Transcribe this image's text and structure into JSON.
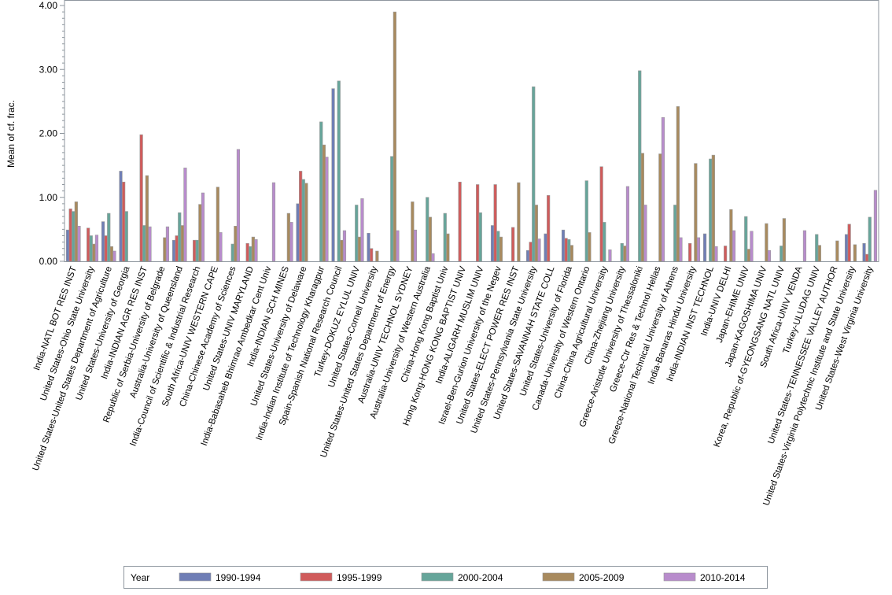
{
  "chart_data": {
    "type": "bar",
    "title": "",
    "xlabel": "",
    "ylabel": "Mean of cf. frac.",
    "ylim": [
      0,
      4
    ],
    "yticks": [
      "0.00",
      "1.00",
      "2.00",
      "3.00",
      "4.00"
    ],
    "legend": {
      "title": "Year",
      "placement": "bottom"
    },
    "categories": [
      "India-NATL BOT RES INST",
      "United States-Ohio State University",
      "United States-United States Department of Agriculture",
      "United States-University of Georgia",
      "India-INDIAN AGR RES INST",
      "Republic of Serbia-University of Belgrade",
      "Australia-University of Queensland",
      "India-Council of Scientific & Industrial Research",
      "South Africa-UNIV WESTERN CAPE",
      "China-Chinese Academy of Sciences",
      "United States-UNIV MARYLAND",
      "India-Babasaheb Bhimrao Ambedkar Cent Univ",
      "India-INDIAN SCH MINES",
      "United States-University of Delaware",
      "India-Indian Institute of Technology Kharagpur",
      "Spain-Spanish National Research Council",
      "Turkey-DOKUZ EYLUL UNIV",
      "United States-Cornell University",
      "United States-United States Department of Energy",
      "Australia-UNIV TECHNOL SYDNEY",
      "Australia-University of Western Australia",
      "China-Hong Kong Baptist Univ",
      "Hong Kong-HONG KONG BAPTIST UNIV",
      "India-ALIGARH MUSLIM UNIV",
      "Israel-Ben-Gurion University of the Negev",
      "United States-ELECT POWER RES INST",
      "United States-Pennsylvania State University",
      "United States-SAVANNAH STATE COLL",
      "United States-University of Florida",
      "Canada-University of Western Ontario",
      "China-China Agricultural University",
      "China-Zhejiang University",
      "Greece-Aristotle University of Thessaloniki",
      "Greece-Ctr Res & Technol Hellas",
      "Greece-National Technical University of Athens",
      "India-Banaras Hindu University",
      "India-INDIAN INST TECHNOL",
      "India-UNIV DELHI",
      "Japan-EHIME UNIV",
      "Japan-KAGOSHIMA UNIV",
      "Korea, Republic of-GYEONGSANG NATL UNIV",
      "South Africa-UNIV VENDA",
      "Turkey-ULUDAG UNIV",
      "United States-TENNESSEE VALLEY AUTHOR",
      "United States-Virginia Polytechnic Institute and State University",
      "United States-West Virginia University"
    ],
    "series": [
      {
        "name": "1990-1994",
        "color": "#6f7eb5",
        "values": [
          0.49,
          null,
          0.62,
          1.41,
          null,
          null,
          0.33,
          null,
          null,
          null,
          null,
          null,
          null,
          0.9,
          null,
          2.7,
          null,
          0.44,
          null,
          null,
          null,
          null,
          null,
          null,
          0.56,
          null,
          0.17,
          0.43,
          0.49,
          null,
          null,
          null,
          null,
          null,
          null,
          null,
          0.43,
          null,
          null,
          null,
          null,
          null,
          null,
          null,
          0.42,
          0.28
        ]
      },
      {
        "name": "1995-1999",
        "color": "#d05b5b",
        "values": [
          0.82,
          0.52,
          0.4,
          1.24,
          1.98,
          null,
          0.4,
          0.33,
          null,
          null,
          0.28,
          null,
          null,
          1.41,
          null,
          null,
          null,
          0.2,
          null,
          null,
          null,
          null,
          1.24,
          1.2,
          1.2,
          0.53,
          0.3,
          1.03,
          0.36,
          null,
          1.48,
          null,
          null,
          null,
          null,
          0.28,
          null,
          0.24,
          null,
          null,
          null,
          null,
          null,
          null,
          0.58,
          0.11
        ]
      },
      {
        "name": "2000-2004",
        "color": "#66a59a",
        "values": [
          0.78,
          0.4,
          0.75,
          0.78,
          0.56,
          null,
          0.76,
          0.33,
          null,
          0.27,
          0.23,
          null,
          null,
          1.28,
          2.18,
          2.82,
          0.88,
          null,
          1.64,
          null,
          1.0,
          0.75,
          null,
          0.76,
          0.47,
          null,
          2.73,
          null,
          0.34,
          1.26,
          0.61,
          0.28,
          2.98,
          null,
          0.88,
          null,
          1.6,
          null,
          0.7,
          null,
          0.24,
          null,
          0.42,
          null,
          null,
          0.69
        ]
      },
      {
        "name": "2005-2009",
        "color": "#a88a5e",
        "values": [
          0.93,
          0.27,
          0.23,
          null,
          1.34,
          0.37,
          0.56,
          0.89,
          1.16,
          0.55,
          0.38,
          null,
          0.75,
          1.22,
          1.82,
          0.33,
          0.38,
          0.16,
          3.9,
          0.93,
          0.69,
          0.43,
          null,
          null,
          0.38,
          1.23,
          0.88,
          null,
          0.25,
          0.45,
          null,
          0.24,
          1.69,
          1.68,
          2.42,
          1.53,
          1.66,
          0.81,
          0.19,
          0.59,
          0.67,
          null,
          0.25,
          0.32,
          0.26,
          null
        ]
      },
      {
        "name": "2010-2014",
        "color": "#b88ccc",
        "values": [
          0.55,
          0.41,
          0.16,
          null,
          0.54,
          0.54,
          1.46,
          1.07,
          0.45,
          1.75,
          0.34,
          1.23,
          0.61,
          null,
          1.63,
          0.48,
          0.98,
          null,
          0.48,
          0.49,
          0.12,
          null,
          null,
          null,
          null,
          null,
          0.35,
          null,
          null,
          null,
          0.18,
          1.17,
          0.88,
          2.25,
          0.37,
          0.37,
          0.23,
          0.48,
          0.47,
          0.17,
          null,
          0.48,
          null,
          null,
          null,
          1.11
        ]
      }
    ]
  }
}
